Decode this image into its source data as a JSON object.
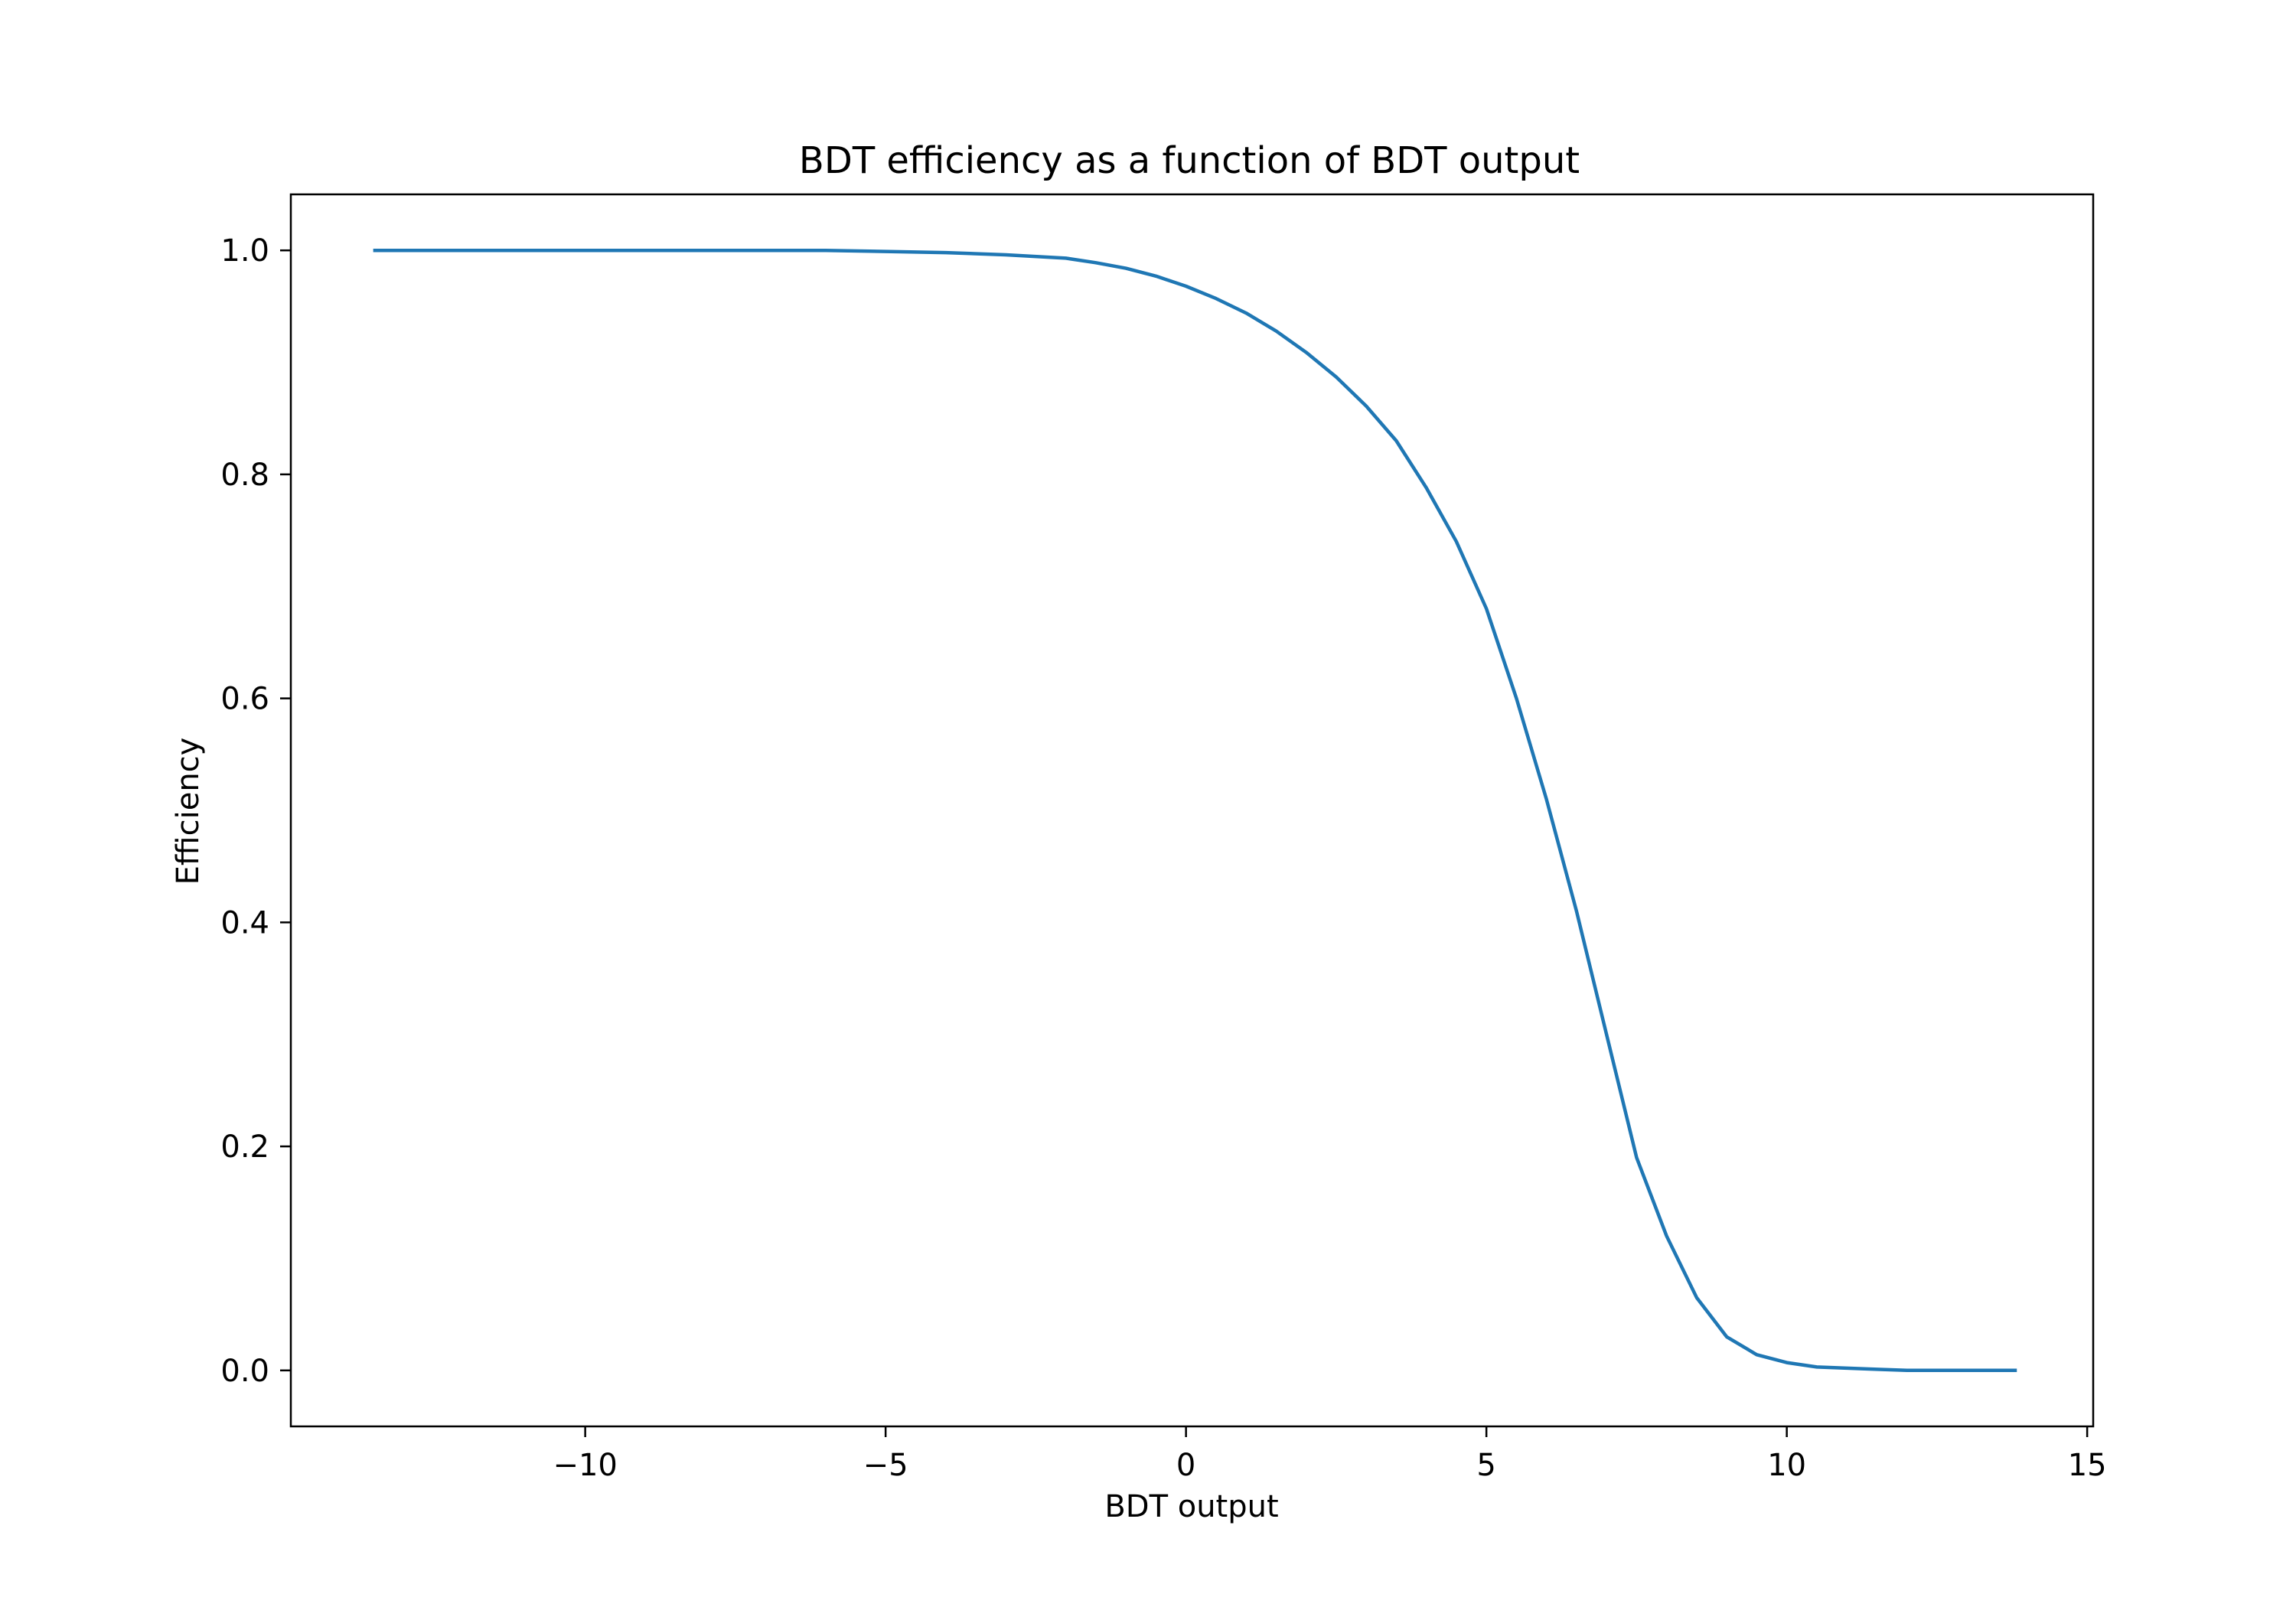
{
  "chart_data": {
    "type": "line",
    "title": "BDT efficiency as a function of BDT output",
    "xlabel": "BDT output",
    "ylabel": "Efficiency",
    "xlim": [
      -14.9,
      15.1
    ],
    "ylim": [
      -0.05,
      1.05
    ],
    "xticks": [
      -10,
      -5,
      0,
      5,
      10,
      15
    ],
    "xtick_labels": [
      "−10",
      "−5",
      "0",
      "5",
      "10",
      "15"
    ],
    "yticks": [
      0.0,
      0.2,
      0.4,
      0.6,
      0.8,
      1.0
    ],
    "ytick_labels": [
      "0.0",
      "0.2",
      "0.4",
      "0.6",
      "0.8",
      "1.0"
    ],
    "grid": false,
    "series": [
      {
        "color": "#1f77b4",
        "x": [
          -13.5,
          -12.0,
          -10.0,
          -8.0,
          -6.0,
          -5.0,
          -4.0,
          -3.0,
          -2.0,
          -1.5,
          -1.0,
          -0.5,
          0.0,
          0.5,
          1.0,
          1.5,
          2.0,
          2.5,
          3.0,
          3.5,
          4.0,
          4.5,
          5.0,
          5.5,
          6.0,
          6.5,
          7.0,
          7.5,
          8.0,
          8.5,
          9.0,
          9.5,
          10.0,
          10.5,
          11.0,
          11.5,
          12.0,
          12.5,
          13.0,
          13.5,
          13.8
        ],
        "y": [
          1.0,
          1.0,
          1.0,
          1.0,
          1.0,
          0.999,
          0.998,
          0.996,
          0.993,
          0.989,
          0.984,
          0.977,
          0.968,
          0.957,
          0.944,
          0.928,
          0.909,
          0.887,
          0.861,
          0.83,
          0.788,
          0.74,
          0.68,
          0.6,
          0.51,
          0.41,
          0.3,
          0.19,
          0.12,
          0.065,
          0.03,
          0.014,
          0.007,
          0.003,
          0.002,
          0.001,
          0.0,
          0.0,
          0.0,
          0.0,
          0.0
        ]
      }
    ]
  }
}
